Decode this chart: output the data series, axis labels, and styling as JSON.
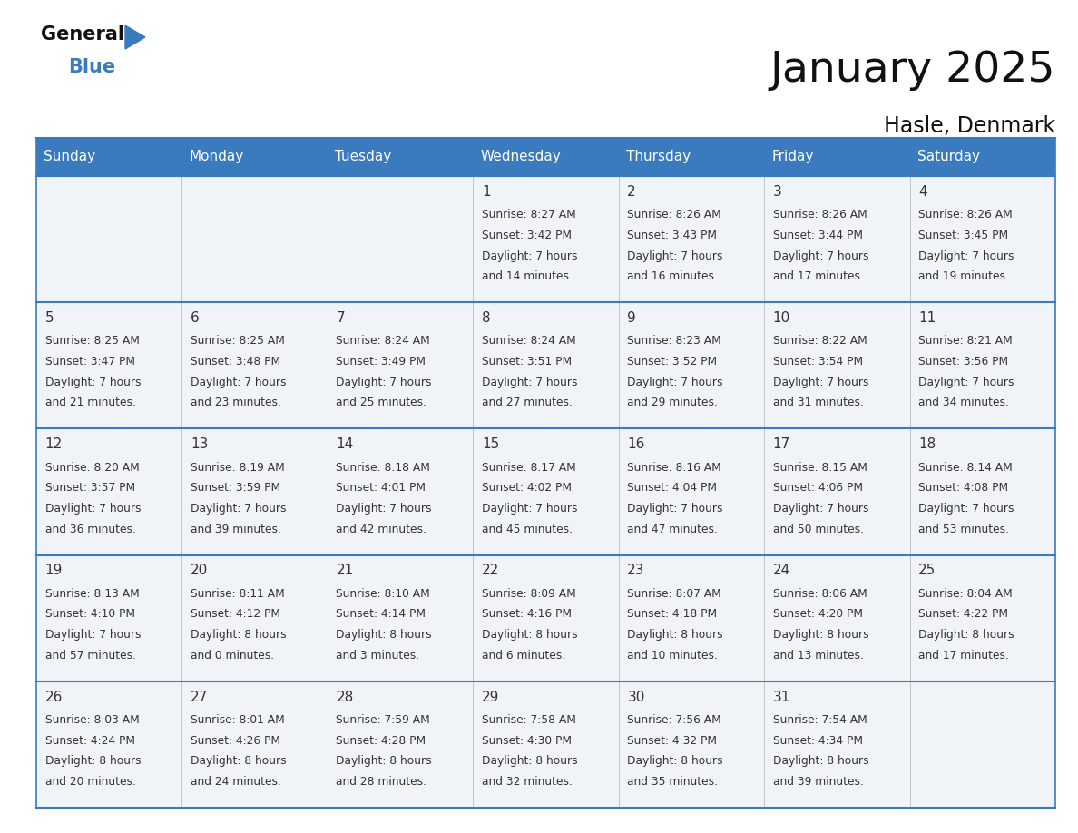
{
  "title": "January 2025",
  "subtitle": "Hasle, Denmark",
  "header_color": "#3a7bbf",
  "header_text_color": "#ffffff",
  "cell_bg_even": "#f0f4f8",
  "cell_bg_odd": "#ffffff",
  "border_color": "#3a7bbf",
  "text_color": "#333333",
  "days_of_week": [
    "Sunday",
    "Monday",
    "Tuesday",
    "Wednesday",
    "Thursday",
    "Friday",
    "Saturday"
  ],
  "weeks": [
    [
      {
        "day": "",
        "sunrise": "",
        "sunset": "",
        "hours": "",
        "minutes": ""
      },
      {
        "day": "",
        "sunrise": "",
        "sunset": "",
        "hours": "",
        "minutes": ""
      },
      {
        "day": "",
        "sunrise": "",
        "sunset": "",
        "hours": "",
        "minutes": ""
      },
      {
        "day": "1",
        "sunrise": "8:27 AM",
        "sunset": "3:42 PM",
        "hours": "7",
        "minutes": "14"
      },
      {
        "day": "2",
        "sunrise": "8:26 AM",
        "sunset": "3:43 PM",
        "hours": "7",
        "minutes": "16"
      },
      {
        "day": "3",
        "sunrise": "8:26 AM",
        "sunset": "3:44 PM",
        "hours": "7",
        "minutes": "17"
      },
      {
        "day": "4",
        "sunrise": "8:26 AM",
        "sunset": "3:45 PM",
        "hours": "7",
        "minutes": "19"
      }
    ],
    [
      {
        "day": "5",
        "sunrise": "8:25 AM",
        "sunset": "3:47 PM",
        "hours": "7",
        "minutes": "21"
      },
      {
        "day": "6",
        "sunrise": "8:25 AM",
        "sunset": "3:48 PM",
        "hours": "7",
        "minutes": "23"
      },
      {
        "day": "7",
        "sunrise": "8:24 AM",
        "sunset": "3:49 PM",
        "hours": "7",
        "minutes": "25"
      },
      {
        "day": "8",
        "sunrise": "8:24 AM",
        "sunset": "3:51 PM",
        "hours": "7",
        "minutes": "27"
      },
      {
        "day": "9",
        "sunrise": "8:23 AM",
        "sunset": "3:52 PM",
        "hours": "7",
        "minutes": "29"
      },
      {
        "day": "10",
        "sunrise": "8:22 AM",
        "sunset": "3:54 PM",
        "hours": "7",
        "minutes": "31"
      },
      {
        "day": "11",
        "sunrise": "8:21 AM",
        "sunset": "3:56 PM",
        "hours": "7",
        "minutes": "34"
      }
    ],
    [
      {
        "day": "12",
        "sunrise": "8:20 AM",
        "sunset": "3:57 PM",
        "hours": "7",
        "minutes": "36"
      },
      {
        "day": "13",
        "sunrise": "8:19 AM",
        "sunset": "3:59 PM",
        "hours": "7",
        "minutes": "39"
      },
      {
        "day": "14",
        "sunrise": "8:18 AM",
        "sunset": "4:01 PM",
        "hours": "7",
        "minutes": "42"
      },
      {
        "day": "15",
        "sunrise": "8:17 AM",
        "sunset": "4:02 PM",
        "hours": "7",
        "minutes": "45"
      },
      {
        "day": "16",
        "sunrise": "8:16 AM",
        "sunset": "4:04 PM",
        "hours": "7",
        "minutes": "47"
      },
      {
        "day": "17",
        "sunrise": "8:15 AM",
        "sunset": "4:06 PM",
        "hours": "7",
        "minutes": "50"
      },
      {
        "day": "18",
        "sunrise": "8:14 AM",
        "sunset": "4:08 PM",
        "hours": "7",
        "minutes": "53"
      }
    ],
    [
      {
        "day": "19",
        "sunrise": "8:13 AM",
        "sunset": "4:10 PM",
        "hours": "7",
        "minutes": "57"
      },
      {
        "day": "20",
        "sunrise": "8:11 AM",
        "sunset": "4:12 PM",
        "hours": "8",
        "minutes": "0"
      },
      {
        "day": "21",
        "sunrise": "8:10 AM",
        "sunset": "4:14 PM",
        "hours": "8",
        "minutes": "3"
      },
      {
        "day": "22",
        "sunrise": "8:09 AM",
        "sunset": "4:16 PM",
        "hours": "8",
        "minutes": "6"
      },
      {
        "day": "23",
        "sunrise": "8:07 AM",
        "sunset": "4:18 PM",
        "hours": "8",
        "minutes": "10"
      },
      {
        "day": "24",
        "sunrise": "8:06 AM",
        "sunset": "4:20 PM",
        "hours": "8",
        "minutes": "13"
      },
      {
        "day": "25",
        "sunrise": "8:04 AM",
        "sunset": "4:22 PM",
        "hours": "8",
        "minutes": "17"
      }
    ],
    [
      {
        "day": "26",
        "sunrise": "8:03 AM",
        "sunset": "4:24 PM",
        "hours": "8",
        "minutes": "20"
      },
      {
        "day": "27",
        "sunrise": "8:01 AM",
        "sunset": "4:26 PM",
        "hours": "8",
        "minutes": "24"
      },
      {
        "day": "28",
        "sunrise": "7:59 AM",
        "sunset": "4:28 PM",
        "hours": "8",
        "minutes": "28"
      },
      {
        "day": "29",
        "sunrise": "7:58 AM",
        "sunset": "4:30 PM",
        "hours": "8",
        "minutes": "32"
      },
      {
        "day": "30",
        "sunrise": "7:56 AM",
        "sunset": "4:32 PM",
        "hours": "8",
        "minutes": "35"
      },
      {
        "day": "31",
        "sunrise": "7:54 AM",
        "sunset": "4:34 PM",
        "hours": "8",
        "minutes": "39"
      },
      {
        "day": "",
        "sunrise": "",
        "sunset": "",
        "hours": "",
        "minutes": ""
      }
    ]
  ]
}
